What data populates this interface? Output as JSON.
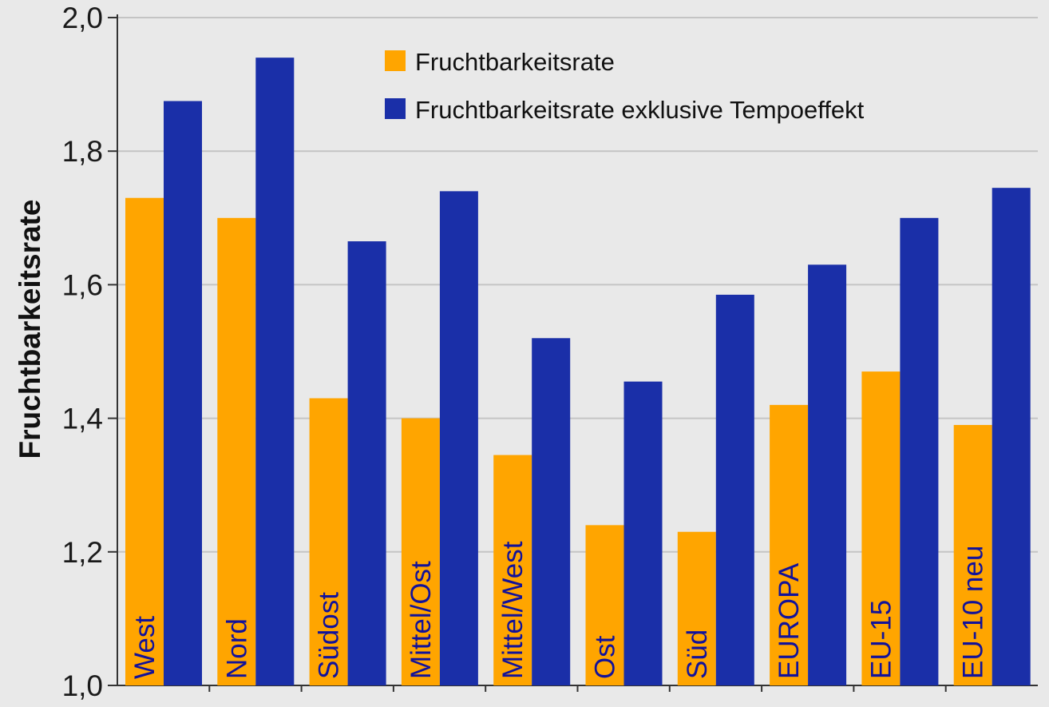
{
  "chart_data": {
    "type": "bar",
    "categories": [
      "West",
      "Nord",
      "Südost",
      "Mittel/Ost",
      "Mittel/West",
      "Ost",
      "Süd",
      "EUROPA",
      "EU-15",
      "EU-10 neu"
    ],
    "series": [
      {
        "name": "Fruchtbarkeitsrate",
        "color": "#ffa500",
        "values": [
          1.73,
          1.7,
          1.43,
          1.4,
          1.345,
          1.24,
          1.23,
          1.42,
          1.47,
          1.39
        ]
      },
      {
        "name": "Fruchtbarkeitsrate exklusive Tempoeffekt",
        "color": "#1a2fa8",
        "values": [
          1.875,
          1.94,
          1.665,
          1.74,
          1.52,
          1.455,
          1.585,
          1.63,
          1.7,
          1.745
        ]
      }
    ],
    "title": "",
    "xlabel": "",
    "ylabel": "Fruchtbarkeitsrate",
    "ylim": [
      1.0,
      2.0
    ],
    "yticks": [
      "1,0",
      "1,2",
      "1,4",
      "1,6",
      "1,8",
      "2,0"
    ],
    "ytick_values": [
      1.0,
      1.2,
      1.4,
      1.6,
      1.8,
      2.0
    ],
    "grid": true,
    "legend_position": "top-right",
    "category_label_placement": "rotated inside the first bar of each group"
  }
}
